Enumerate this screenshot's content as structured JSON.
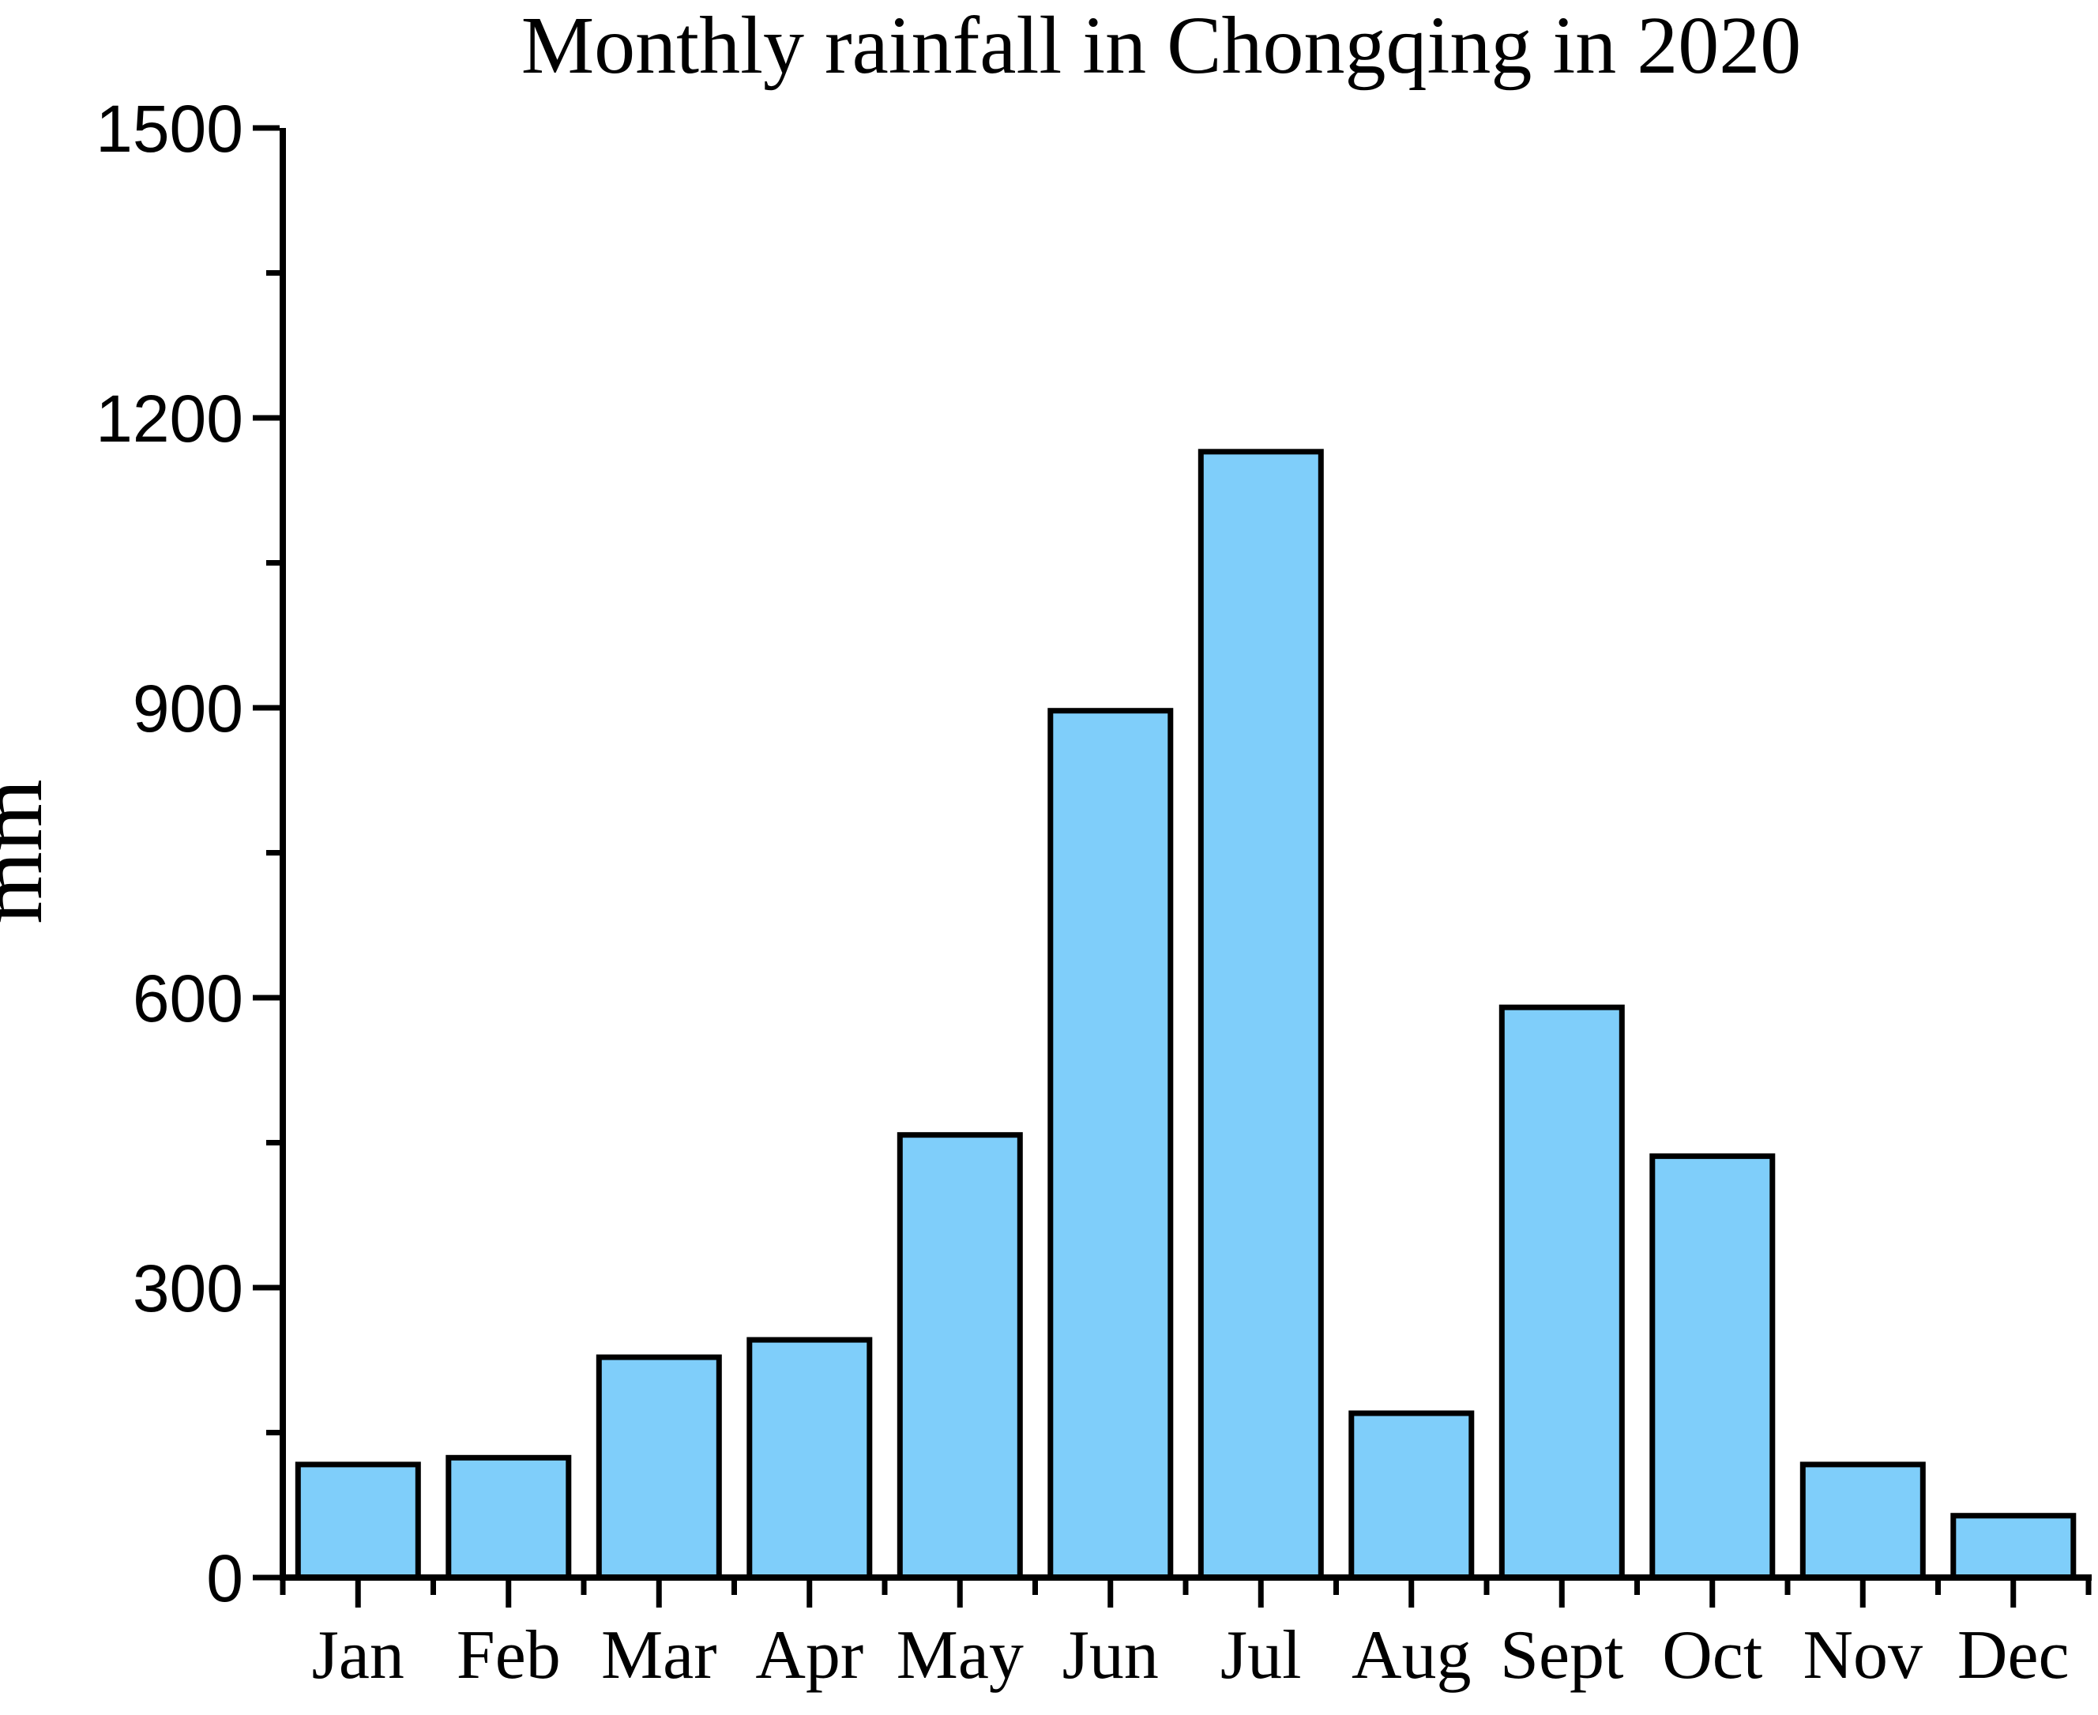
{
  "title": "Monthly rainfall in Chongqing in 2020",
  "colors": {
    "background": "#FFFFFF",
    "bar_fill": "#7FCEFA",
    "bar_edge": "#000000",
    "axis": "#000000",
    "text": "#000000"
  },
  "chart_data": {
    "type": "bar",
    "title": "Monthly rainfall in Chongqing in 2020",
    "xlabel": "",
    "ylabel": "mm",
    "categories": [
      "Jan",
      "Feb",
      "Mar",
      "Apr",
      "May",
      "Jun",
      "Jul",
      "Aug",
      "Sept",
      "Oct",
      "Nov",
      "Dec"
    ],
    "values": [
      117,
      124,
      228,
      246,
      458,
      897,
      1165,
      170,
      590,
      436,
      117,
      64
    ],
    "ylim": [
      0,
      1500
    ],
    "yticks": [
      0,
      300,
      600,
      900,
      1200,
      1500
    ],
    "minor_ytick_values": [
      150,
      450,
      750,
      1050,
      1350
    ],
    "grid": false,
    "legend": null,
    "bar_fill": "#7FCEFA",
    "bar_edge": "#000000",
    "axes_style": "left-bottom-only, ticks pointing outward, long ticks at month centers, short ticks at month boundaries"
  }
}
